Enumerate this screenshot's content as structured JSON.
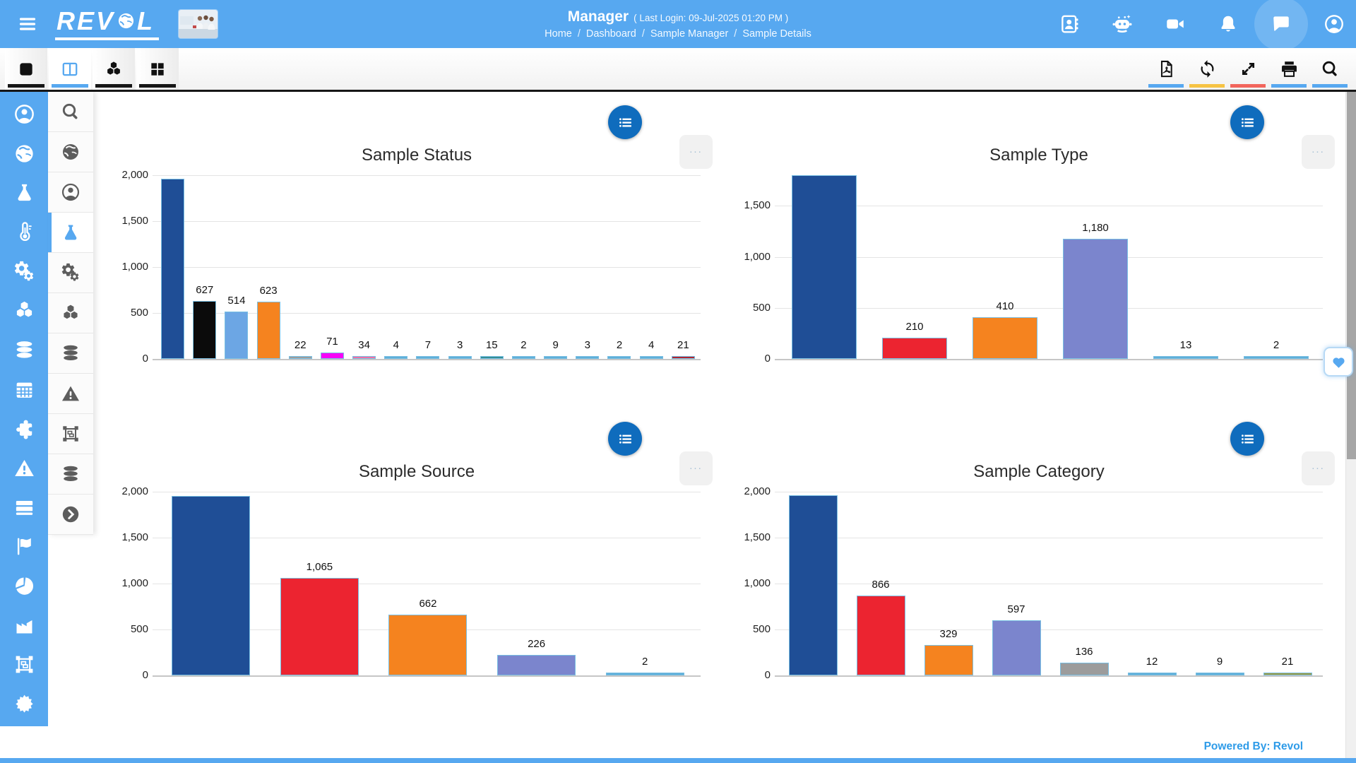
{
  "header": {
    "logo_left": "REV",
    "logo_right": "L",
    "logo_alt": "REVOL",
    "title": "Manager",
    "last_login": "( Last Login: 09-Jul-2025 01:20 PM )",
    "breadcrumbs": [
      "Home",
      "Dashboard",
      "Sample Manager",
      "Sample Details"
    ],
    "breadcrumb_separator": "/",
    "right_icons": [
      "address-book",
      "robot",
      "video",
      "bell",
      "chat",
      "user-circle"
    ]
  },
  "view_tabs": [
    {
      "icon": "square",
      "active": false,
      "underline": "#161616"
    },
    {
      "icon": "split",
      "active": true,
      "underline": "#57A8F0"
    },
    {
      "icon": "cubes",
      "active": false,
      "underline": "#161616"
    },
    {
      "icon": "grid",
      "active": false,
      "underline": "#161616"
    }
  ],
  "toolbar": [
    {
      "icon": "pdf",
      "underline": "#57A8F0"
    },
    {
      "icon": "refresh",
      "underline": "#F6C343"
    },
    {
      "icon": "expand",
      "underline": "#F2655C"
    },
    {
      "icon": "print",
      "underline": "#57A8F0"
    },
    {
      "icon": "search",
      "underline": "#57A8F0"
    }
  ],
  "sidebar_primary": [
    "user-circle",
    "globe",
    "flask",
    "thermometer",
    "gears",
    "cubes",
    "database",
    "calendar",
    "puzzle",
    "warning",
    "server",
    "flag",
    "pie-chart",
    "factory",
    "object-group",
    "badge-cog"
  ],
  "sidebar_secondary": {
    "items": [
      "search",
      "globe",
      "user-circle",
      "flask",
      "gears",
      "cubes",
      "database",
      "warning",
      "object-group",
      "database",
      "chevron-circle"
    ],
    "active_index": 3
  },
  "chart_actions": {
    "menu_icon": "list-menu",
    "more_label": "..."
  },
  "floating": {
    "heart_icon": "heart"
  },
  "footer": {
    "powered_by": "Powered By: Revol"
  },
  "colors": {
    "header_blue": "#57A8F0",
    "chart_menu_blue": "#0F6CBD",
    "toolbar_underline_yellow": "#F6C343",
    "toolbar_underline_red": "#F2655C",
    "footer_text_blue": "#2E9BE8",
    "bar_border_blue": "#79BFE3"
  },
  "chart_data": [
    {
      "type": "bar",
      "title": "Sample Status",
      "xlabel": "",
      "ylabel": "",
      "ylim": [
        0,
        2000
      ],
      "yticks": [
        "0",
        "500",
        "1,000",
        "1,500",
        "2,000"
      ],
      "grid": "horizontal",
      "legend": "none",
      "values": [
        1960,
        627,
        514,
        623,
        22,
        71,
        34,
        4,
        7,
        3,
        15,
        2,
        9,
        3,
        2,
        4,
        21
      ],
      "data_labels": [
        "",
        "627",
        "514",
        "623",
        "22",
        "71",
        "34",
        "4",
        "7",
        "3",
        "15",
        "2",
        "9",
        "3",
        "2",
        "4",
        "21"
      ],
      "colors": [
        "#1F4E96",
        "#0B0B0B",
        "#6CA6E4",
        "#F5831F",
        "#9C9C9C",
        "#F704F7",
        "#EF6FA5",
        "#5FAFD9",
        "#5FAFD9",
        "#5FAFD9",
        "#348E96",
        "#5FAFD9",
        "#5FAFD9",
        "#5FAFD9",
        "#5FAFD9",
        "#5FAFD9",
        "#AF2430"
      ],
      "first_bar_label_hidden": true
    },
    {
      "type": "bar",
      "title": "Sample Type",
      "xlabel": "",
      "ylabel": "",
      "ylim": [
        0,
        1800
      ],
      "yticks": [
        "0",
        "500",
        "1,000",
        "1,500"
      ],
      "grid": "horizontal",
      "legend": "none",
      "values": [
        1800,
        210,
        410,
        1180,
        13,
        2
      ],
      "data_labels": [
        "",
        "210",
        "410",
        "1,180",
        "13",
        "2"
      ],
      "colors": [
        "#1F4E96",
        "#EC2430",
        "#F5831F",
        "#7B85CD",
        "#5FAFD9",
        "#5FAFD9"
      ],
      "first_bar_label_hidden": true
    },
    {
      "type": "bar",
      "title": "Sample Source",
      "xlabel": "",
      "ylabel": "",
      "ylim": [
        0,
        2000
      ],
      "yticks": [
        "0",
        "500",
        "1,000",
        "1,500",
        "2,000"
      ],
      "grid": "horizontal",
      "legend": "none",
      "values": [
        1950,
        1065,
        662,
        226,
        2
      ],
      "data_labels": [
        "",
        "1,065",
        "662",
        "226",
        "2"
      ],
      "colors": [
        "#1F4E96",
        "#EC2430",
        "#F5831F",
        "#7B85CD",
        "#5FAFD9"
      ],
      "first_bar_label_hidden": true
    },
    {
      "type": "bar",
      "title": "Sample Category",
      "xlabel": "",
      "ylabel": "",
      "ylim": [
        0,
        2000
      ],
      "yticks": [
        "0",
        "500",
        "1,000",
        "1,500",
        "2,000"
      ],
      "grid": "horizontal",
      "legend": "none",
      "values": [
        1960,
        866,
        329,
        597,
        136,
        12,
        9,
        21
      ],
      "data_labels": [
        "",
        "866",
        "329",
        "597",
        "136",
        "12",
        "9",
        "21"
      ],
      "colors": [
        "#1F4E96",
        "#EC2430",
        "#F5831F",
        "#7B85CD",
        "#9C9C9C",
        "#5FAFD9",
        "#5FAFD9",
        "#9A9A40"
      ],
      "first_bar_label_hidden": true
    }
  ]
}
